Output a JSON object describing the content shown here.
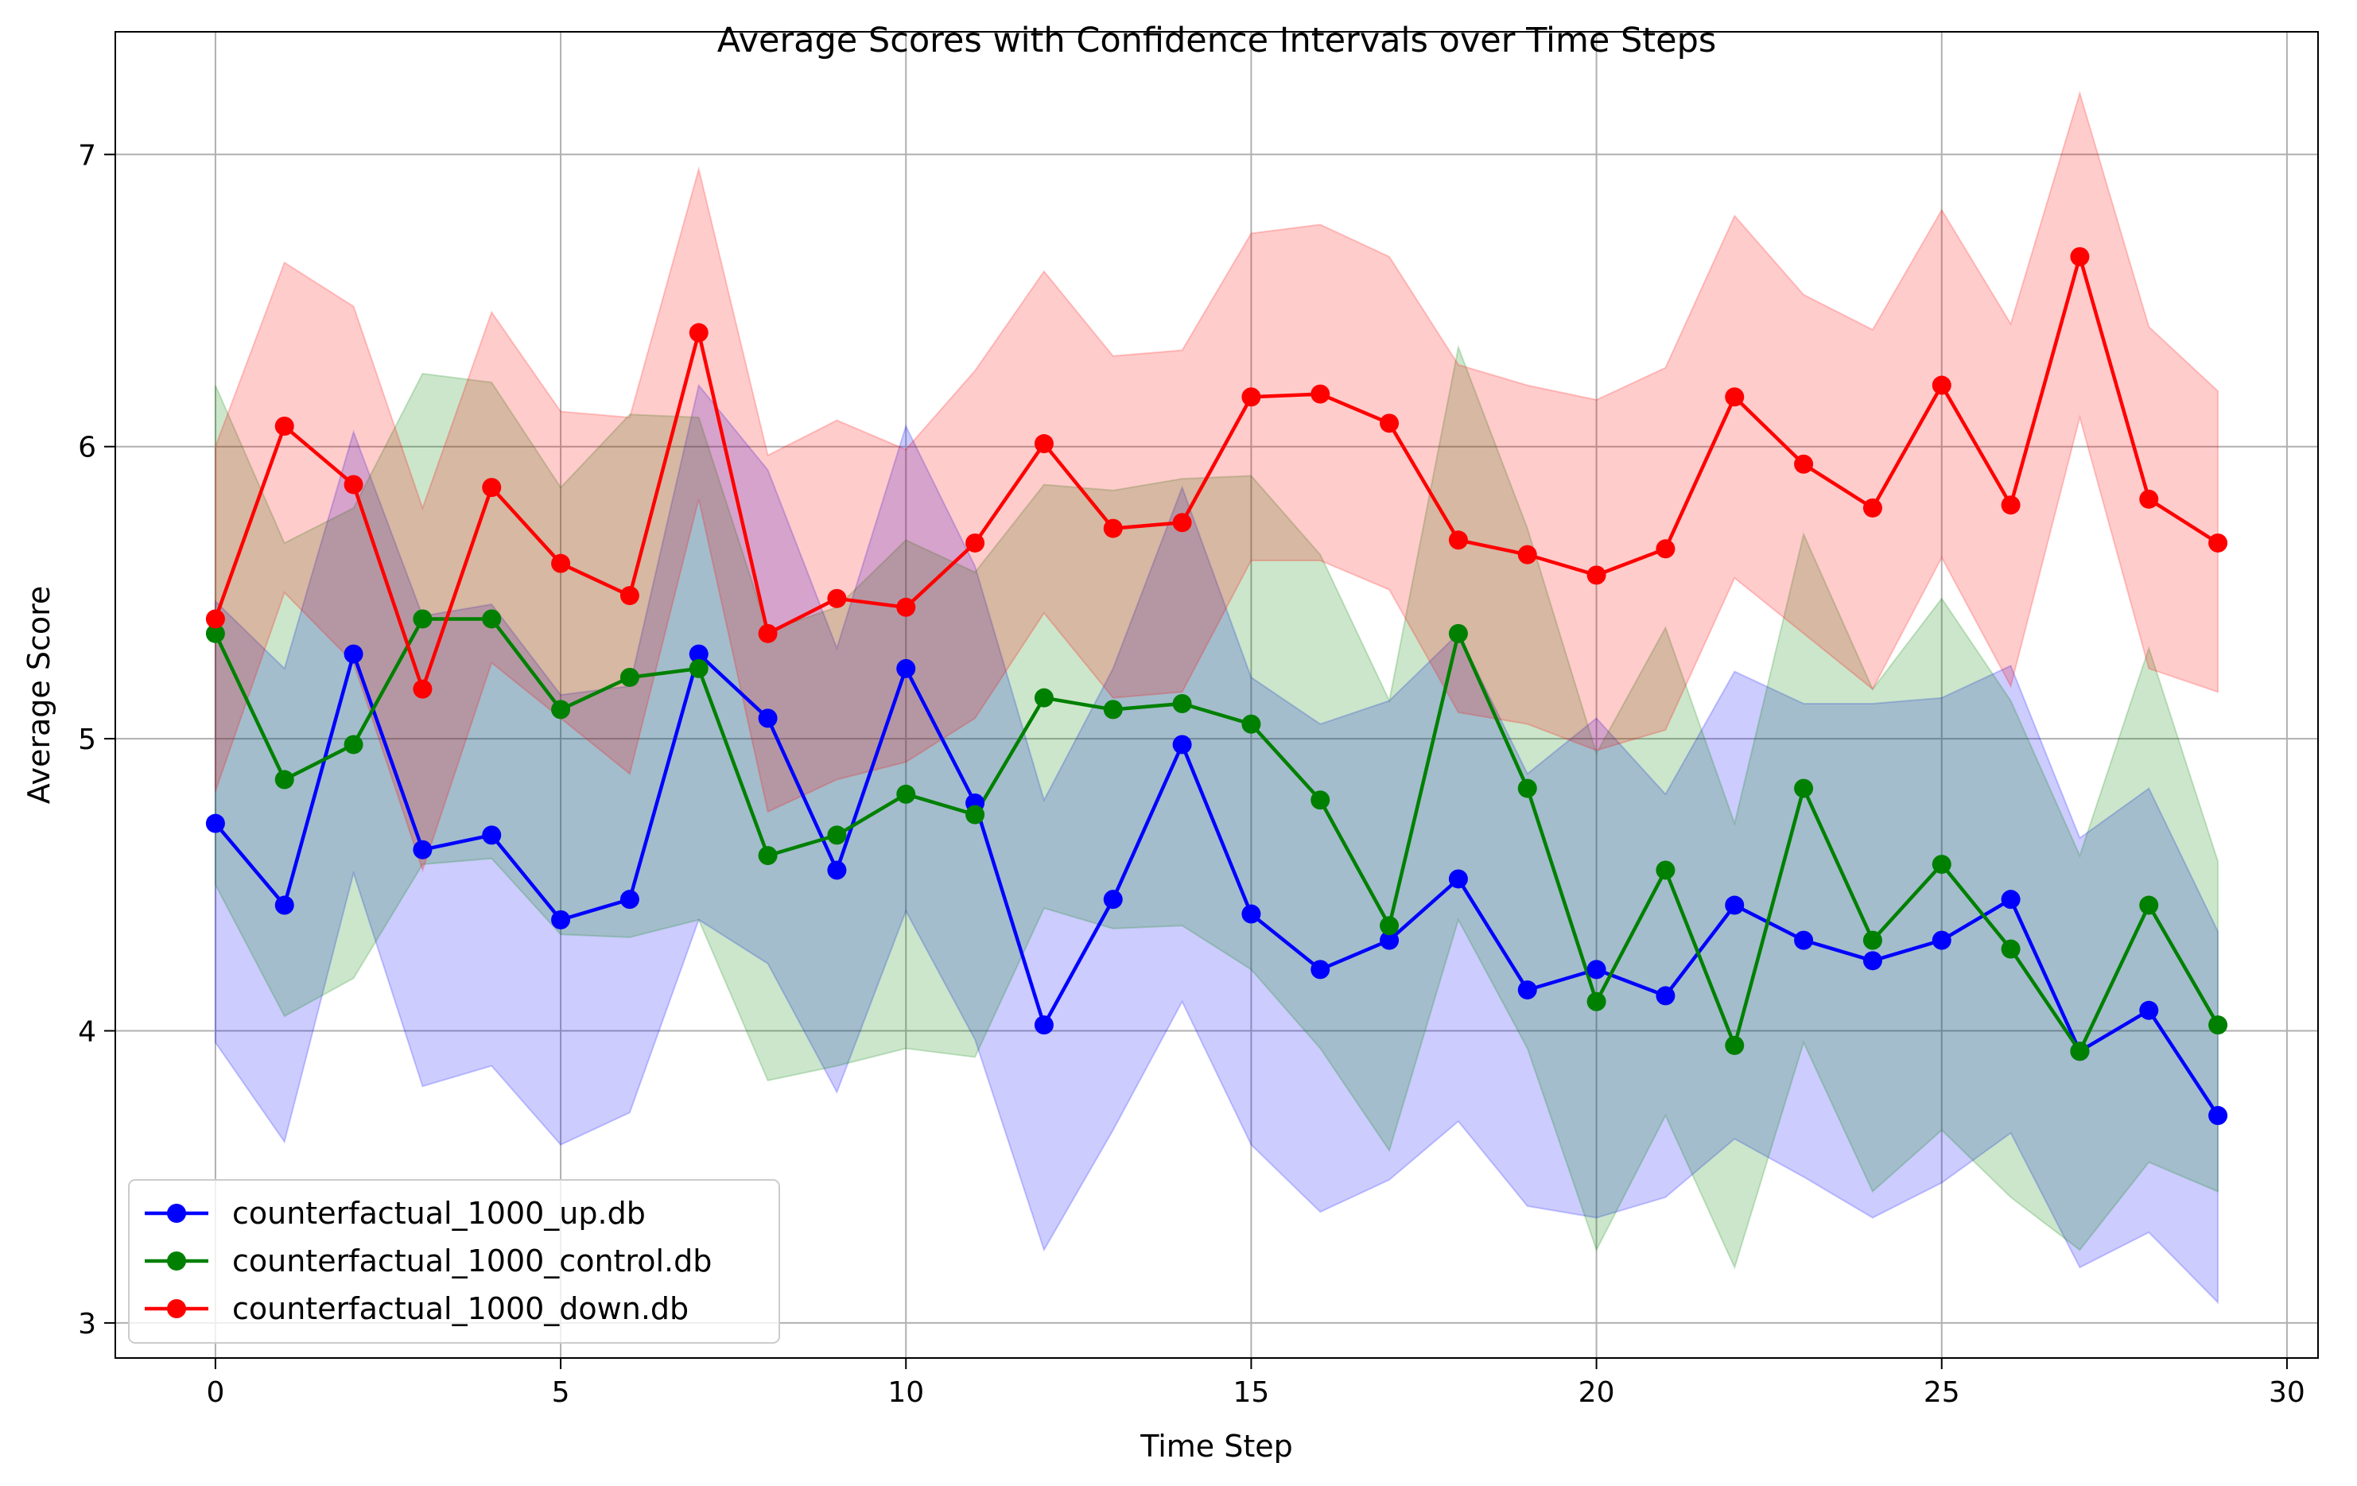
{
  "chart_data": {
    "type": "line",
    "title": "Average Scores with Confidence Intervals over Time Steps",
    "xlabel": "Time Step",
    "ylabel": "Average Score",
    "xlim": [
      -1.45,
      30.45
    ],
    "ylim": [
      2.88,
      7.42
    ],
    "xticks": [
      0,
      5,
      10,
      15,
      20,
      25,
      30
    ],
    "yticks": [
      3,
      4,
      5,
      6,
      7
    ],
    "grid": true,
    "legend_position": "bottom-left",
    "x": [
      0,
      1,
      2,
      3,
      4,
      5,
      6,
      7,
      8,
      9,
      10,
      11,
      12,
      13,
      14,
      15,
      16,
      17,
      18,
      19,
      20,
      21,
      22,
      23,
      24,
      25,
      26,
      27,
      28,
      29
    ],
    "series": [
      {
        "name": "counterfactual_1000_up.db",
        "color": "#0000ff",
        "values": [
          4.71,
          4.43,
          5.29,
          4.62,
          4.67,
          4.38,
          4.45,
          5.29,
          5.07,
          4.55,
          5.24,
          4.78,
          4.02,
          4.45,
          4.98,
          4.4,
          4.21,
          4.31,
          4.52,
          4.14,
          4.21,
          4.12,
          4.43,
          4.31,
          4.24,
          4.31,
          4.45,
          3.93,
          4.07,
          3.71
        ],
        "lower": [
          3.96,
          3.62,
          4.54,
          3.81,
          3.88,
          3.61,
          3.72,
          4.38,
          4.23,
          3.79,
          4.41,
          3.97,
          3.25,
          3.66,
          4.1,
          3.61,
          3.38,
          3.49,
          3.69,
          3.4,
          3.36,
          3.43,
          3.63,
          3.5,
          3.36,
          3.48,
          3.65,
          3.19,
          3.31,
          3.07
        ],
        "upper": [
          5.47,
          5.24,
          6.05,
          5.42,
          5.46,
          5.15,
          5.18,
          6.21,
          5.92,
          5.31,
          6.07,
          5.59,
          4.79,
          5.24,
          5.86,
          5.21,
          5.05,
          5.13,
          5.36,
          4.88,
          5.07,
          4.81,
          5.23,
          5.12,
          5.12,
          5.14,
          5.25,
          4.66,
          4.83,
          4.34
        ]
      },
      {
        "name": "counterfactual_1000_control.db",
        "color": "#008000",
        "values": [
          5.36,
          4.86,
          4.98,
          5.41,
          5.41,
          5.1,
          5.21,
          5.24,
          4.6,
          4.67,
          4.81,
          4.74,
          5.14,
          5.1,
          5.12,
          5.05,
          4.79,
          4.36,
          5.36,
          4.83,
          4.1,
          4.55,
          3.95,
          4.83,
          4.31,
          4.57,
          4.28,
          3.93,
          4.43,
          4.02
        ],
        "lower": [
          4.5,
          4.05,
          4.18,
          4.57,
          4.59,
          4.33,
          4.32,
          4.38,
          3.83,
          3.88,
          3.94,
          3.91,
          4.42,
          4.35,
          4.36,
          4.21,
          3.94,
          3.59,
          4.38,
          3.94,
          3.25,
          3.71,
          3.19,
          3.96,
          3.45,
          3.66,
          3.43,
          3.25,
          3.55,
          3.45
        ],
        "upper": [
          6.21,
          5.67,
          5.79,
          6.25,
          6.22,
          5.86,
          6.11,
          6.1,
          5.37,
          5.45,
          5.68,
          5.57,
          5.87,
          5.85,
          5.89,
          5.9,
          5.63,
          5.13,
          6.34,
          5.72,
          4.95,
          5.38,
          4.71,
          5.7,
          5.17,
          5.48,
          5.13,
          4.6,
          5.31,
          4.58
        ]
      },
      {
        "name": "counterfactual_1000_down.db",
        "color": "#ff0000",
        "values": [
          5.41,
          6.07,
          5.87,
          5.17,
          5.86,
          5.6,
          5.49,
          6.39,
          5.36,
          5.48,
          5.45,
          5.67,
          6.01,
          5.72,
          5.74,
          6.17,
          6.18,
          6.08,
          5.68,
          5.63,
          5.56,
          5.65,
          6.17,
          5.94,
          5.79,
          6.21,
          5.8,
          6.65,
          5.82,
          5.67
        ],
        "lower": [
          4.82,
          5.5,
          5.26,
          4.55,
          5.26,
          5.07,
          4.88,
          5.82,
          4.75,
          4.86,
          4.92,
          5.07,
          5.43,
          5.14,
          5.16,
          5.61,
          5.61,
          5.51,
          5.09,
          5.05,
          4.96,
          5.03,
          5.55,
          5.36,
          5.17,
          5.62,
          5.18,
          6.1,
          5.24,
          5.16
        ],
        "upper": [
          6.0,
          6.63,
          6.48,
          5.79,
          6.46,
          6.12,
          6.1,
          6.95,
          5.97,
          6.09,
          5.99,
          6.26,
          6.6,
          6.31,
          6.33,
          6.73,
          6.76,
          6.65,
          6.28,
          6.21,
          6.16,
          6.27,
          6.79,
          6.52,
          6.4,
          6.81,
          6.42,
          7.21,
          6.41,
          6.19
        ]
      }
    ]
  }
}
